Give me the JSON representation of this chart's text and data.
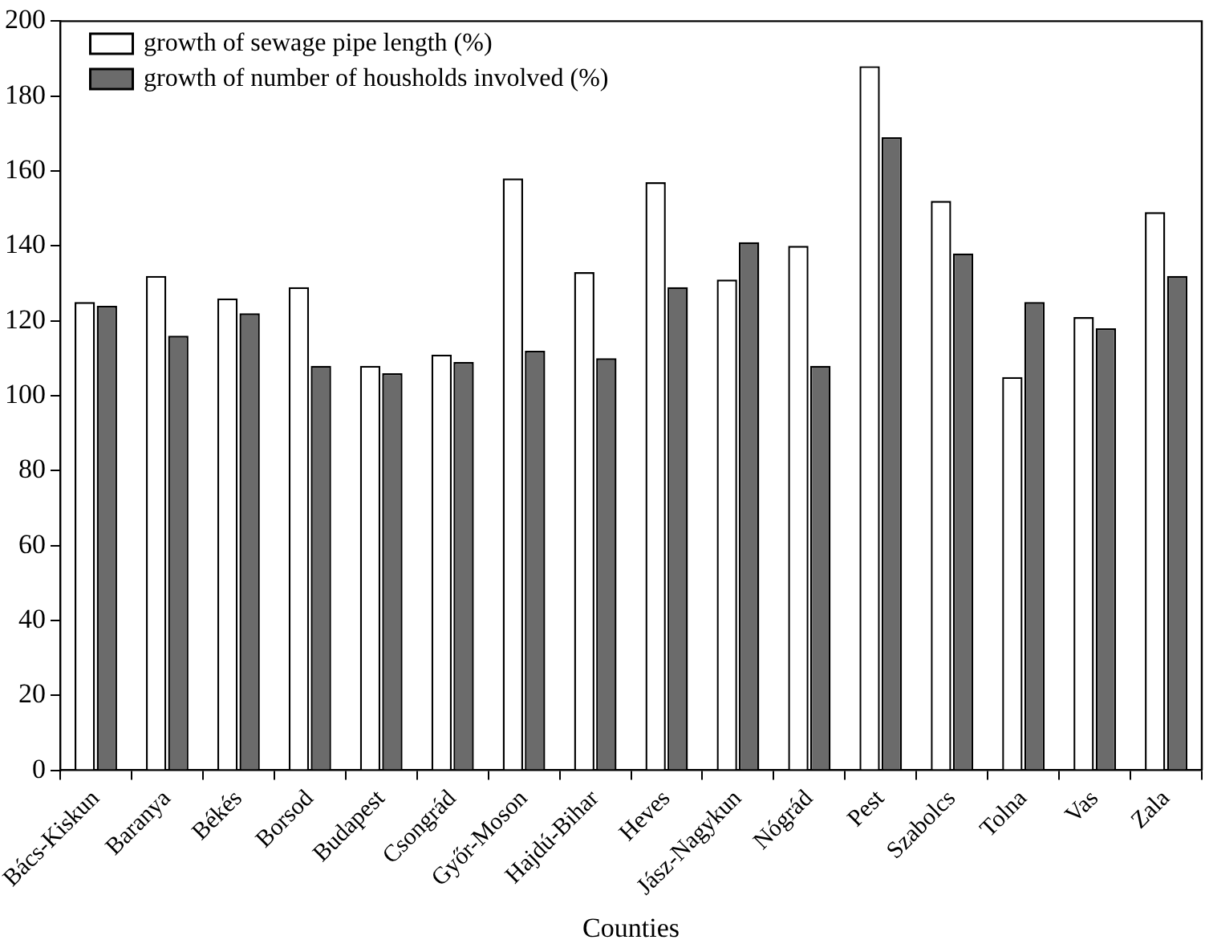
{
  "chart_data": {
    "type": "bar",
    "xlabel": "Counties",
    "categories": [
      "Bács-Kiskun",
      "Baranya",
      "Békés",
      "Borsod",
      "Budapest",
      "Csongrád",
      "Győr-Moson",
      "Hajdú-Bihar",
      "Heves",
      "Jász-Nagykun",
      "Nógrád",
      "Pest",
      "Szabolcs",
      "Tolna",
      "Vas",
      "Zala"
    ],
    "series": [
      {
        "name": "growth of sewage pipe length (%)",
        "color": "#ffffff",
        "values": [
          125,
          132,
          126,
          129,
          108,
          111,
          158,
          133,
          157,
          131,
          140,
          188,
          152,
          105,
          121,
          149
        ]
      },
      {
        "name": "growth of number of housholds involved (%)",
        "color": "#6b6b6b",
        "values": [
          124,
          116,
          122,
          108,
          106,
          109,
          112,
          110,
          129,
          141,
          108,
          169,
          138,
          125,
          118,
          132
        ]
      }
    ],
    "ylim": [
      0,
      200
    ],
    "yticks": [
      0,
      20,
      40,
      60,
      80,
      100,
      120,
      140,
      160,
      180,
      200
    ],
    "grid": false,
    "legend": "top left"
  }
}
